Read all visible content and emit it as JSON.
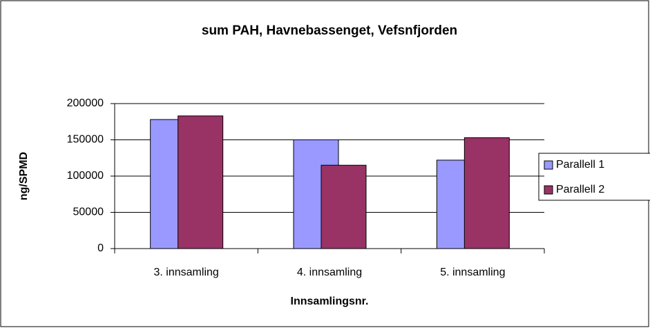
{
  "chart_data": {
    "type": "bar",
    "title": "sum PAH, Havnebassenget, Vefsnfjorden",
    "x_label": "Innsamlingsnr.",
    "y_label": "ng/SPMD",
    "categories": [
      "3. innsamling",
      "4. innsamling",
      "5. innsamling"
    ],
    "series": [
      {
        "name": "Parallell 1",
        "color": "#9999ff",
        "values": [
          178000,
          150000,
          122000
        ]
      },
      {
        "name": "Parallell 2",
        "color": "#993366",
        "values": [
          183000,
          115000,
          153000
        ]
      }
    ],
    "ylim": [
      0,
      200000
    ],
    "yticks": [
      0,
      50000,
      100000,
      150000,
      200000
    ],
    "grid": true,
    "legend": "right"
  }
}
